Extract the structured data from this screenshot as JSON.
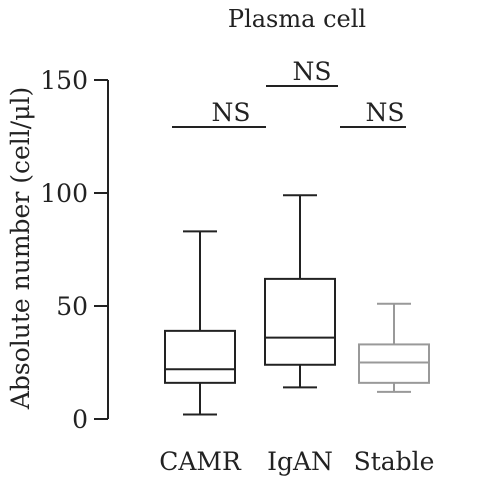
{
  "chart_data": {
    "type": "box",
    "title": "Plasma cell",
    "ylabel": "Absolute number (cell/μl)",
    "xlabel": "",
    "ylim": [
      0,
      150
    ],
    "yticks": [
      0,
      50,
      100,
      150
    ],
    "categories": [
      "CAMR",
      "IgAN",
      "Stable"
    ],
    "boxes": [
      {
        "category": "CAMR",
        "min": 2,
        "q1": 16,
        "median": 22,
        "q3": 39,
        "max": 83,
        "color": "#222222"
      },
      {
        "category": "IgAN",
        "min": 14,
        "q1": 24,
        "median": 36,
        "q3": 62,
        "max": 99,
        "color": "#222222"
      },
      {
        "category": "Stable",
        "min": 12,
        "q1": 16,
        "median": 25,
        "q3": 33,
        "max": 51,
        "color": "#999999"
      }
    ],
    "annotations": [
      {
        "text": "NS",
        "from": "CAMR",
        "to": "IgAN",
        "level": 1
      },
      {
        "text": "NS",
        "from": "CAMR",
        "to": "Stable",
        "level": 2
      },
      {
        "text": "NS",
        "from": "IgAN",
        "to": "Stable",
        "level": 1
      }
    ]
  }
}
